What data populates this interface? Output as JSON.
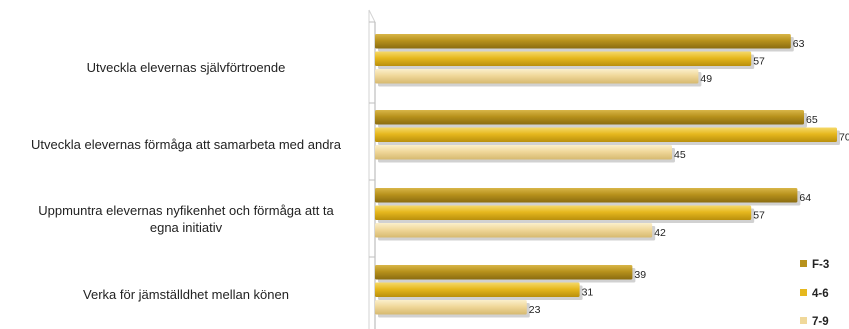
{
  "chart_data": {
    "type": "bar",
    "orientation": "horizontal",
    "title": "",
    "xlabel": "",
    "ylabel": "",
    "xlim": [
      0,
      70
    ],
    "grid": false,
    "legend_position": "bottom-right",
    "categories": [
      [
        "Utveckla elevernas självförtroende"
      ],
      [
        "Utveckla elevernas förmåga att samarbeta med andra"
      ],
      [
        "Uppmuntra elevernas nyfikenhet och förmåga att ta",
        "egna initiativ"
      ],
      [
        "Verka för jämställdhet mellan könen"
      ]
    ],
    "series": [
      {
        "name": "F-3",
        "color": "#b8921c",
        "values": [
          63,
          65,
          64,
          39
        ]
      },
      {
        "name": "4-6",
        "color": "#e6b81e",
        "values": [
          57,
          70,
          57,
          31
        ]
      },
      {
        "name": "7-9",
        "color": "#f0d89a",
        "values": [
          49,
          45,
          42,
          23
        ]
      }
    ]
  }
}
